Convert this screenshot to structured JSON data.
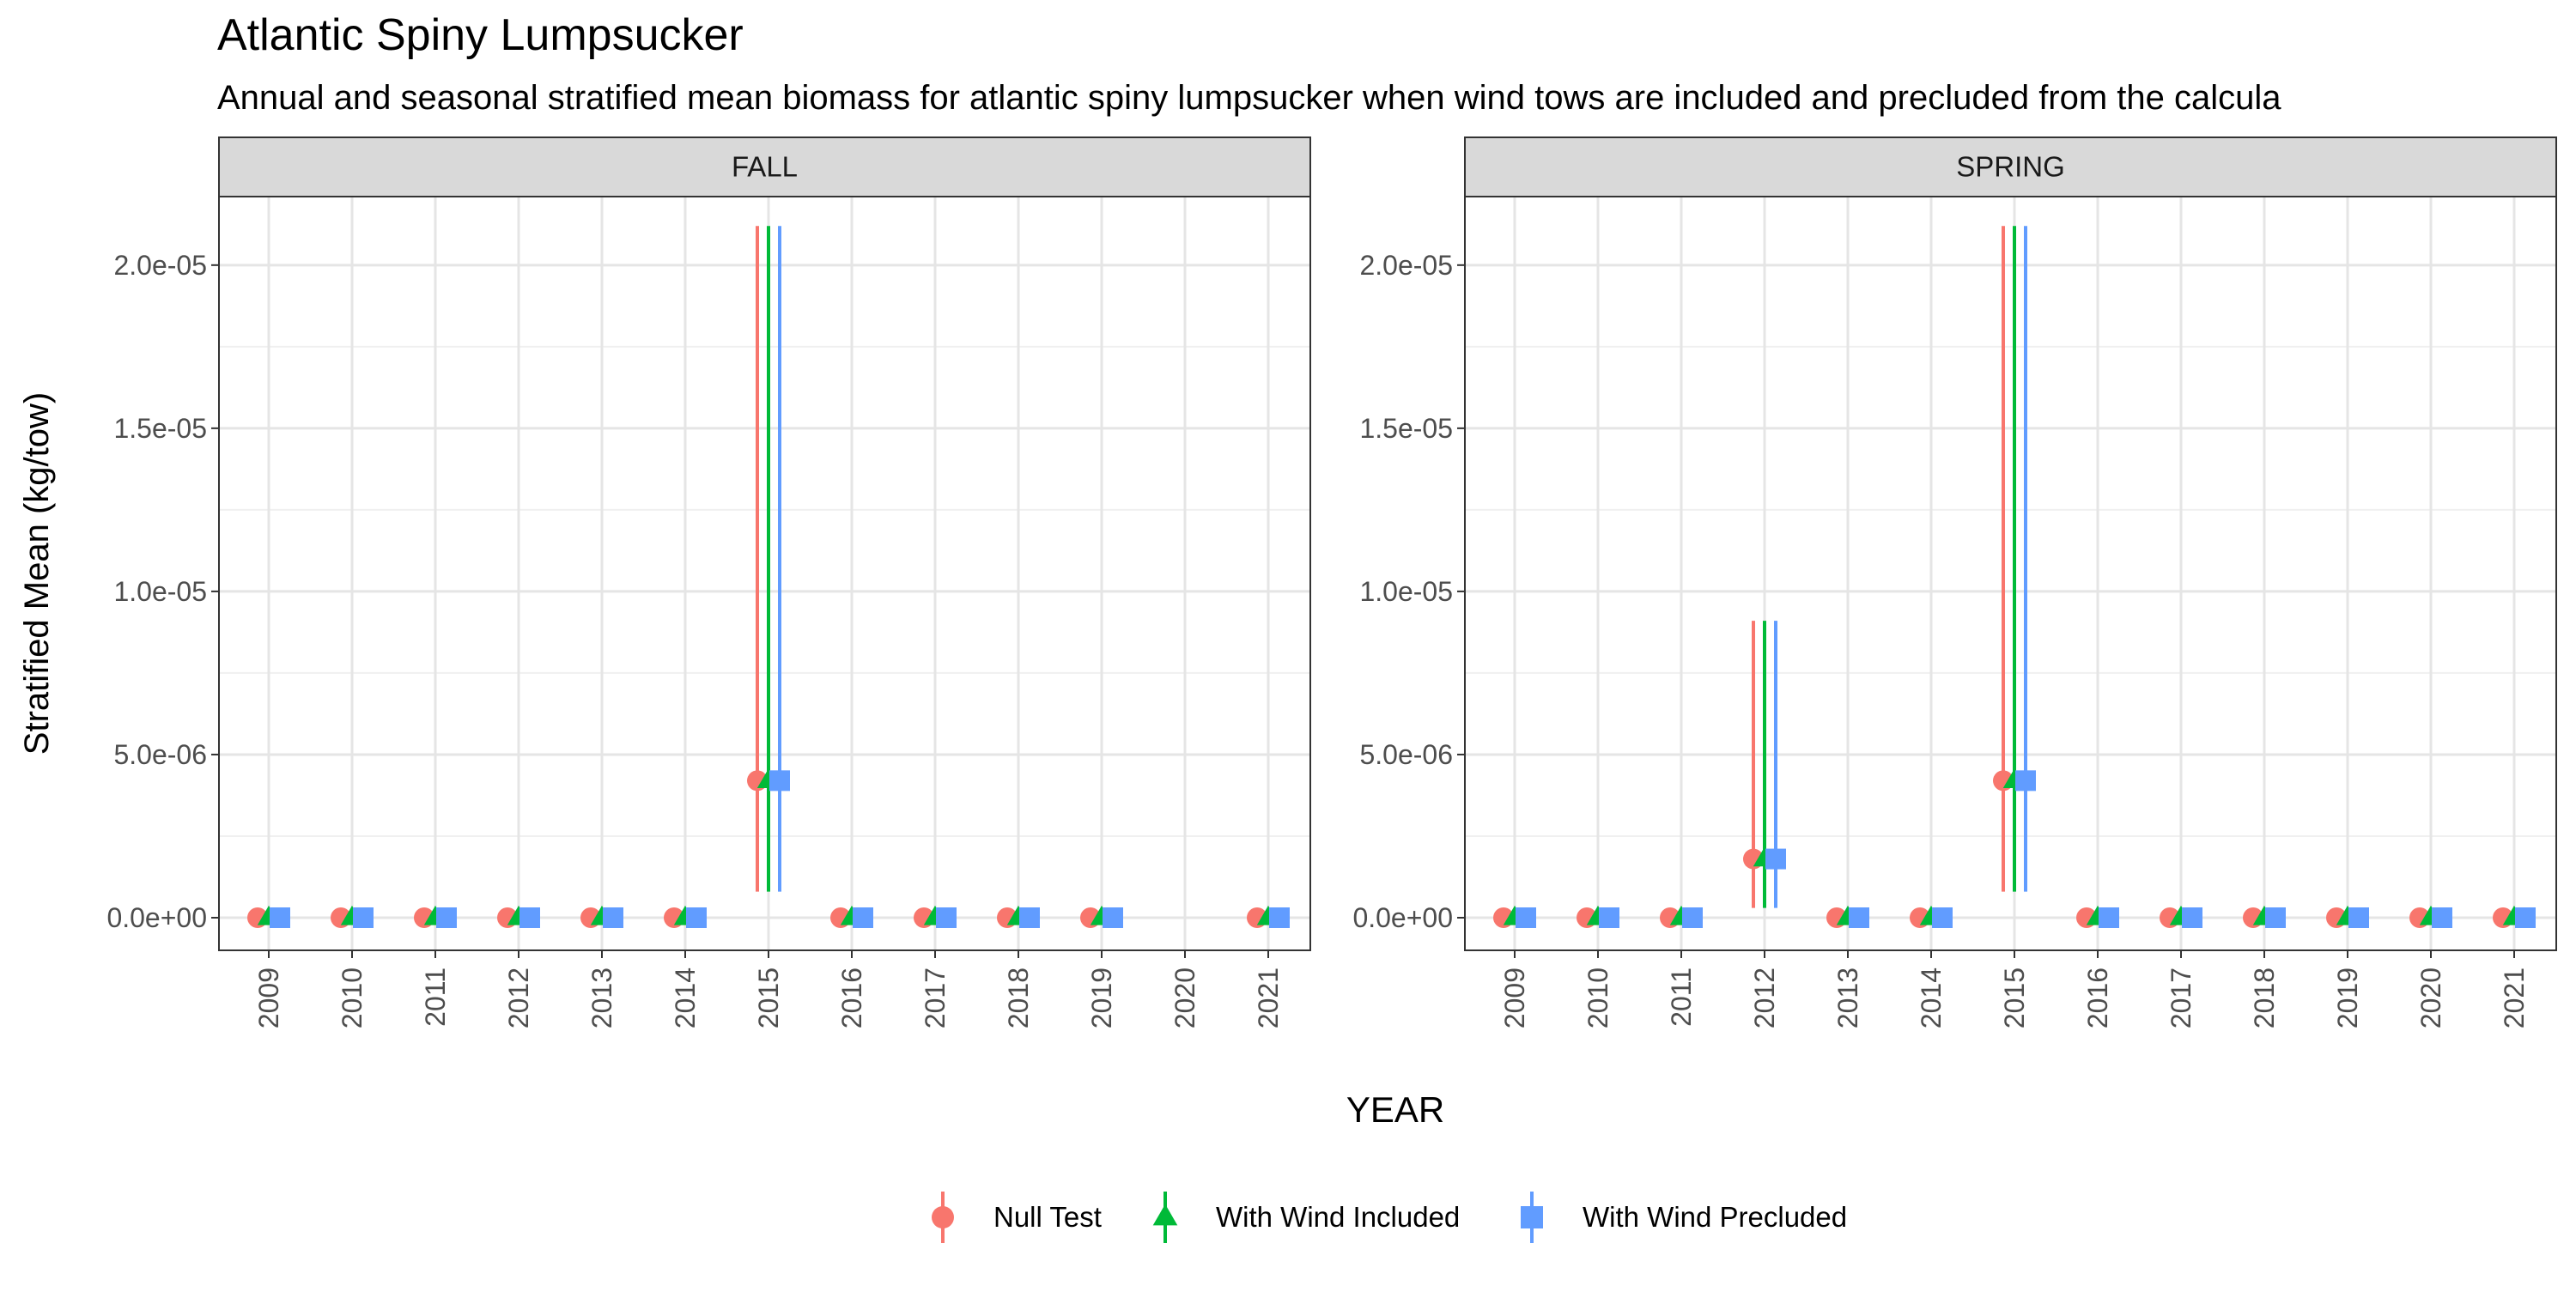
{
  "chart_data": {
    "type": "scatter",
    "title": "Atlantic Spiny Lumpsucker",
    "subtitle": "Annual and seasonal stratified mean biomass for atlantic spiny lumpsucker when wind tows are included and precluded from the calcula",
    "xlabel": "YEAR",
    "ylabel": "Stratified Mean (kg/tow)",
    "x_categories": [
      "2009",
      "2010",
      "2011",
      "2012",
      "2013",
      "2014",
      "2015",
      "2016",
      "2017",
      "2018",
      "2019",
      "2020",
      "2021"
    ],
    "y_ticks": [
      0,
      5e-06,
      1e-05,
      1.5e-05,
      2e-05
    ],
    "y_tick_labels": [
      "0.0e+00",
      "5.0e-06",
      "1.0e-05",
      "1.5e-05",
      "2.0e-05"
    ],
    "ylim": [
      -1e-06,
      2.21e-05
    ],
    "grid": true,
    "legend_position": "bottom",
    "legend": [
      {
        "name": "Null Test",
        "color": "#F8766D",
        "shape": "circle"
      },
      {
        "name": "With Wind Included",
        "color": "#00BA38",
        "shape": "triangle"
      },
      {
        "name": "With Wind Precluded",
        "color": "#619CFF",
        "shape": "square"
      }
    ],
    "panels": [
      {
        "label": "FALL",
        "series": [
          {
            "name": "Null Test",
            "points": [
              {
                "x": "2009",
                "y": 0
              },
              {
                "x": "2010",
                "y": 0
              },
              {
                "x": "2011",
                "y": 0
              },
              {
                "x": "2012",
                "y": 0
              },
              {
                "x": "2013",
                "y": 0
              },
              {
                "x": "2014",
                "y": 0
              },
              {
                "x": "2015",
                "y": 4.2e-06,
                "lo": 8e-07,
                "hi": 2.12e-05
              },
              {
                "x": "2016",
                "y": 0
              },
              {
                "x": "2017",
                "y": 0
              },
              {
                "x": "2018",
                "y": 0
              },
              {
                "x": "2019",
                "y": 0
              },
              {
                "x": "2021",
                "y": 0
              }
            ]
          },
          {
            "name": "With Wind Included",
            "points": [
              {
                "x": "2009",
                "y": 0
              },
              {
                "x": "2010",
                "y": 0
              },
              {
                "x": "2011",
                "y": 0
              },
              {
                "x": "2012",
                "y": 0
              },
              {
                "x": "2013",
                "y": 0
              },
              {
                "x": "2014",
                "y": 0
              },
              {
                "x": "2015",
                "y": 4.2e-06,
                "lo": 8e-07,
                "hi": 2.12e-05
              },
              {
                "x": "2016",
                "y": 0
              },
              {
                "x": "2017",
                "y": 0
              },
              {
                "x": "2018",
                "y": 0
              },
              {
                "x": "2019",
                "y": 0
              },
              {
                "x": "2021",
                "y": 0
              }
            ]
          },
          {
            "name": "With Wind Precluded",
            "points": [
              {
                "x": "2009",
                "y": 0
              },
              {
                "x": "2010",
                "y": 0
              },
              {
                "x": "2011",
                "y": 0
              },
              {
                "x": "2012",
                "y": 0
              },
              {
                "x": "2013",
                "y": 0
              },
              {
                "x": "2014",
                "y": 0
              },
              {
                "x": "2015",
                "y": 4.2e-06,
                "lo": 8e-07,
                "hi": 2.12e-05
              },
              {
                "x": "2016",
                "y": 0
              },
              {
                "x": "2017",
                "y": 0
              },
              {
                "x": "2018",
                "y": 0
              },
              {
                "x": "2019",
                "y": 0
              },
              {
                "x": "2021",
                "y": 0
              }
            ]
          }
        ]
      },
      {
        "label": "SPRING",
        "series": [
          {
            "name": "Null Test",
            "points": [
              {
                "x": "2009",
                "y": 0
              },
              {
                "x": "2010",
                "y": 0
              },
              {
                "x": "2011",
                "y": 0
              },
              {
                "x": "2012",
                "y": 1.8e-06,
                "lo": 3e-07,
                "hi": 9.1e-06
              },
              {
                "x": "2013",
                "y": 0
              },
              {
                "x": "2014",
                "y": 0
              },
              {
                "x": "2015",
                "y": 4.2e-06,
                "lo": 8e-07,
                "hi": 2.12e-05
              },
              {
                "x": "2016",
                "y": 0
              },
              {
                "x": "2017",
                "y": 0
              },
              {
                "x": "2018",
                "y": 0
              },
              {
                "x": "2019",
                "y": 0
              },
              {
                "x": "2020",
                "y": 0
              },
              {
                "x": "2021",
                "y": 0
              }
            ]
          },
          {
            "name": "With Wind Included",
            "points": [
              {
                "x": "2009",
                "y": 0
              },
              {
                "x": "2010",
                "y": 0
              },
              {
                "x": "2011",
                "y": 0
              },
              {
                "x": "2012",
                "y": 1.8e-06,
                "lo": 3e-07,
                "hi": 9.1e-06
              },
              {
                "x": "2013",
                "y": 0
              },
              {
                "x": "2014",
                "y": 0
              },
              {
                "x": "2015",
                "y": 4.2e-06,
                "lo": 8e-07,
                "hi": 2.12e-05
              },
              {
                "x": "2016",
                "y": 0
              },
              {
                "x": "2017",
                "y": 0
              },
              {
                "x": "2018",
                "y": 0
              },
              {
                "x": "2019",
                "y": 0
              },
              {
                "x": "2020",
                "y": 0
              },
              {
                "x": "2021",
                "y": 0
              }
            ]
          },
          {
            "name": "With Wind Precluded",
            "points": [
              {
                "x": "2009",
                "y": 0
              },
              {
                "x": "2010",
                "y": 0
              },
              {
                "x": "2011",
                "y": 0
              },
              {
                "x": "2012",
                "y": 1.8e-06,
                "lo": 3e-07,
                "hi": 9.1e-06
              },
              {
                "x": "2013",
                "y": 0
              },
              {
                "x": "2014",
                "y": 0
              },
              {
                "x": "2015",
                "y": 4.2e-06,
                "lo": 8e-07,
                "hi": 2.12e-05
              },
              {
                "x": "2016",
                "y": 0
              },
              {
                "x": "2017",
                "y": 0
              },
              {
                "x": "2018",
                "y": 0
              },
              {
                "x": "2019",
                "y": 0
              },
              {
                "x": "2020",
                "y": 0
              },
              {
                "x": "2021",
                "y": 0
              }
            ]
          }
        ]
      }
    ]
  }
}
